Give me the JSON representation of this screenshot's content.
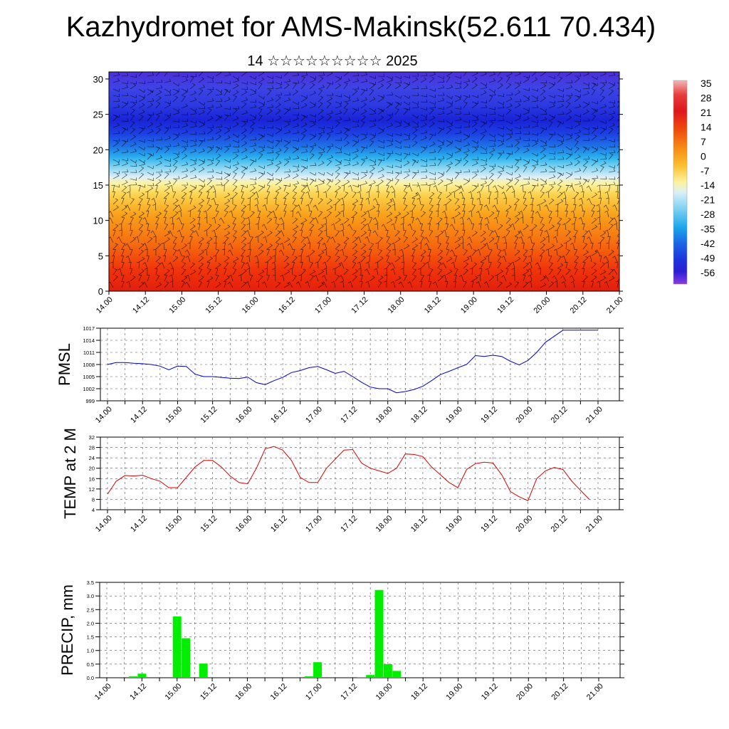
{
  "title": "Kazhydromet for AMS-Makinsk(52.611 70.434)",
  "subtitle": "14 ☆☆☆☆☆☆☆☆☆ 2025",
  "chart_data": [
    {
      "type": "heatmap",
      "name": "upper-air temperature cross-section with wind barbs",
      "x_ticks": [
        "14.00",
        "14.12",
        "15.00",
        "15.12",
        "16.00",
        "16.12",
        "17.00",
        "17.12",
        "18.00",
        "18.12",
        "19.00",
        "19.12",
        "20.00",
        "20.12",
        "21.00"
      ],
      "y_ticks": [
        "0",
        "5",
        "10",
        "15",
        "20",
        "25",
        "30"
      ],
      "ylim": [
        0,
        31
      ],
      "colorbar_labels": [
        "35",
        "28",
        "21",
        "14",
        "7",
        "0",
        "-7",
        "-14",
        "-21",
        "-28",
        "-35",
        "-42",
        "-49",
        "-56"
      ],
      "temperature_by_level": [
        {
          "level": 0,
          "value": 24
        },
        {
          "level": 5,
          "value": 17
        },
        {
          "level": 10,
          "value": 8
        },
        {
          "level": 15,
          "value": -8
        },
        {
          "level": 17,
          "value": -20
        },
        {
          "level": 20,
          "value": -35
        },
        {
          "level": 23,
          "value": -52
        },
        {
          "level": 26,
          "value": -46
        },
        {
          "level": 31,
          "value": -54
        }
      ]
    },
    {
      "type": "line",
      "ylabel": "PMSL",
      "x_ticks": [
        "14.00",
        "14.12",
        "15.00",
        "15.12",
        "16.00",
        "16.12",
        "17.00",
        "17.12",
        "18.00",
        "18.12",
        "19.00",
        "19.12",
        "20.00",
        "20.12",
        "21.00"
      ],
      "y_ticks": [
        "999",
        "1002",
        "1005",
        "1008",
        "1011",
        "1014",
        "1017"
      ],
      "ylim": [
        999,
        1017
      ],
      "color": "#0000cc",
      "series": [
        {
          "x": [
            0,
            3,
            6,
            9,
            12,
            15,
            18,
            21,
            24,
            27,
            30,
            33,
            36,
            39,
            42,
            45,
            48,
            51,
            54,
            57,
            60,
            63,
            66,
            69,
            72,
            75,
            78,
            81,
            84,
            87,
            90,
            93,
            96,
            99,
            102,
            105,
            108,
            111,
            114,
            117,
            120,
            123,
            126,
            129,
            132,
            135,
            138,
            141,
            144,
            147,
            150,
            153,
            156,
            159,
            162,
            165,
            168
          ],
          "values": [
            1008.0,
            1008.5,
            1008.5,
            1008.3,
            1008.2,
            1008.0,
            1007.6,
            1006.7,
            1007.6,
            1007.5,
            1005.6,
            1005.0,
            1005.0,
            1004.8,
            1004.6,
            1004.5,
            1004.9,
            1003.5,
            1003.0,
            1004.0,
            1004.8,
            1006.0,
            1006.5,
            1007.2,
            1007.5,
            1006.7,
            1005.8,
            1006.3,
            1005.0,
            1003.6,
            1002.4,
            1002.0,
            1002.0,
            1001.0,
            1001.3,
            1001.8,
            1002.6,
            1004.0,
            1005.5,
            1006.3,
            1007.2,
            1008.0,
            1010.2,
            1010.0,
            1010.3,
            1010.0,
            1008.8,
            1007.9,
            1009.0,
            1011.0,
            1013.5,
            1015.0,
            1016.5,
            1016.5,
            1016.5,
            1016.5,
            1016.5
          ]
        }
      ]
    },
    {
      "type": "line",
      "ylabel": "TEMP at 2 M",
      "x_ticks": [
        "14.00",
        "14.12",
        "15.00",
        "15.12",
        "16.00",
        "16.12",
        "17.00",
        "17.12",
        "18.00",
        "18.12",
        "19.00",
        "19.12",
        "20.00",
        "20.12",
        "21.00"
      ],
      "y_ticks": [
        "4",
        "8",
        "12",
        "16",
        "20",
        "24",
        "28",
        "32"
      ],
      "ylim": [
        4,
        32
      ],
      "color": "#dd0000",
      "series": [
        {
          "x": [
            0,
            3,
            6,
            9,
            12,
            15,
            18,
            21,
            24,
            27,
            30,
            33,
            36,
            39,
            42,
            45,
            48,
            51,
            54,
            57,
            60,
            63,
            66,
            69,
            72,
            75,
            78,
            81,
            84,
            87,
            90,
            93,
            96,
            99,
            102,
            105,
            108,
            111,
            114,
            117,
            120,
            123,
            126,
            129,
            132,
            135,
            138,
            141,
            144,
            147,
            150,
            153,
            156,
            159,
            162,
            165
          ],
          "values": [
            10,
            15,
            17.2,
            17.0,
            17.3,
            16.0,
            15.0,
            12.5,
            12.5,
            16.5,
            20.5,
            23.0,
            23.0,
            20.5,
            17.0,
            14.5,
            14.0,
            20.0,
            27.5,
            28.4,
            27.0,
            23.0,
            16.5,
            14.5,
            14.5,
            20.0,
            23.5,
            27.0,
            27.2,
            22.0,
            20.0,
            19.0,
            18.0,
            20.0,
            25.5,
            25.3,
            24.5,
            20.5,
            17.5,
            14.5,
            12.5,
            19.5,
            21.8,
            22.3,
            22.0,
            17.5,
            11.0,
            9.0,
            7.5,
            16.0,
            19.0,
            20.3,
            19.5,
            15.0,
            11.5,
            8.0
          ]
        }
      ]
    },
    {
      "type": "bar",
      "ylabel": "PRECIP, mm",
      "x_ticks": [
        "14.00",
        "14.12",
        "15.00",
        "15.12",
        "16.00",
        "16.12",
        "17.00",
        "17.12",
        "18.00",
        "18.12",
        "19.00",
        "19.12",
        "20.00",
        "20.12",
        "21.00"
      ],
      "y_ticks": [
        "0.0",
        "0.5",
        "1.0",
        "1.5",
        "2.0",
        "2.5",
        "3.0",
        "3.5"
      ],
      "ylim": [
        0,
        3.5
      ],
      "color": "#00ee00",
      "x": [
        9,
        12,
        24,
        27,
        33,
        69,
        72,
        87,
        90,
        93,
        96,
        99
      ],
      "values": [
        0.05,
        0.15,
        2.25,
        1.45,
        0.52,
        0.05,
        0.57,
        0.02,
        0.1,
        3.22,
        0.5,
        0.25
      ]
    }
  ]
}
